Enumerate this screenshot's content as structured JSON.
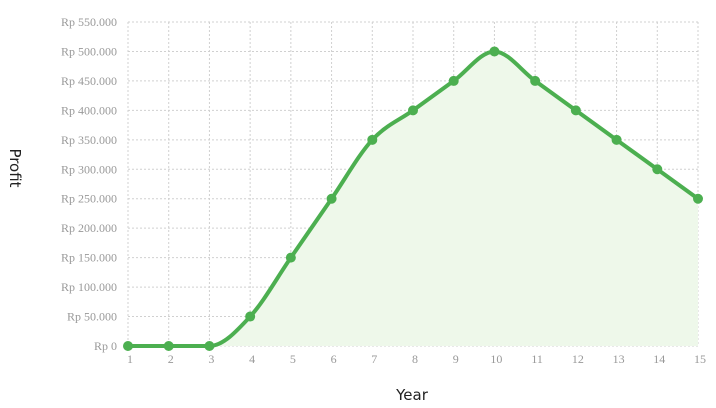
{
  "chart_data": {
    "type": "area",
    "title": "",
    "xlabel": "Year",
    "ylabel": "Profit",
    "x": [
      1,
      2,
      3,
      4,
      5,
      6,
      7,
      8,
      9,
      10,
      11,
      12,
      13,
      14,
      15
    ],
    "x_tick_labels": [
      "1",
      "2",
      "3",
      "4",
      "5",
      "6",
      "7",
      "8",
      "9",
      "10",
      "11",
      "12",
      "13",
      "14",
      "15"
    ],
    "y_tick_labels": [
      "Rp 0",
      "Rp 50.000",
      "Rp 100.000",
      "Rp 150.000",
      "Rp 200.000",
      "Rp 250.000",
      "Rp 300.000",
      "Rp 350.000",
      "Rp 400.000",
      "Rp 450.000",
      "Rp 500.000",
      "Rp 550.000"
    ],
    "y_ticks": [
      0,
      50000,
      100000,
      150000,
      200000,
      250000,
      300000,
      350000,
      400000,
      450000,
      500000,
      550000
    ],
    "xlim": [
      1,
      15
    ],
    "ylim": [
      0,
      550000
    ],
    "grid": true,
    "series": [
      {
        "values": [
          0,
          0,
          0,
          50000,
          150000,
          250000,
          350000,
          400000,
          450000,
          500000,
          450000,
          400000,
          350000,
          300000,
          250000
        ],
        "color": "#4caf50",
        "fill": "#eef8ea"
      }
    ]
  }
}
